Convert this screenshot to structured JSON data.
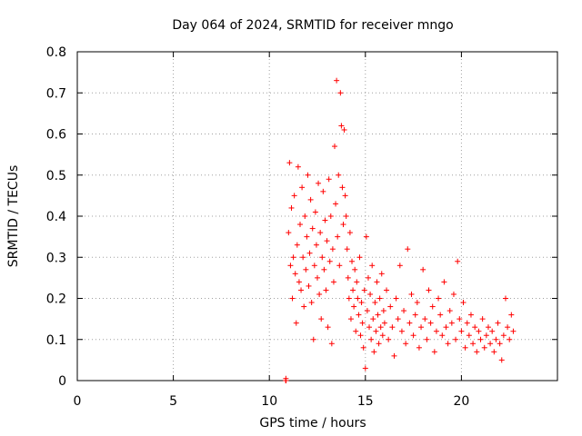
{
  "chart_data": {
    "type": "scatter",
    "title": "Day 064 of 2024, SRMTID for receiver mngo",
    "xlabel": "GPS time / hours",
    "ylabel": "SRMTID / TECUs",
    "xlim": [
      0,
      25
    ],
    "ylim": [
      0,
      0.8
    ],
    "xticks": [
      0,
      5,
      10,
      15,
      20
    ],
    "xtick_labels": [
      "0",
      "5",
      "10",
      "15",
      "20"
    ],
    "yticks": [
      0,
      0.1,
      0.2,
      0.3,
      0.4,
      0.5,
      0.6,
      0.7,
      0.8
    ],
    "ytick_labels": [
      "0",
      "0.1",
      "0.2",
      "0.3",
      "0.4",
      "0.5",
      "0.6",
      "0.7",
      "0.8"
    ],
    "grid": true,
    "marker": "+",
    "color": "#ff0000",
    "series": [
      {
        "name": "SRMTID",
        "points": [
          [
            10.85,
            0.0
          ],
          [
            10.86,
            0.005
          ],
          [
            10.87,
            0.0
          ],
          [
            11.0,
            0.36
          ],
          [
            11.05,
            0.53
          ],
          [
            11.1,
            0.28
          ],
          [
            11.15,
            0.42
          ],
          [
            11.2,
            0.2
          ],
          [
            11.25,
            0.3
          ],
          [
            11.3,
            0.45
          ],
          [
            11.35,
            0.26
          ],
          [
            11.4,
            0.14
          ],
          [
            11.45,
            0.33
          ],
          [
            11.5,
            0.52
          ],
          [
            11.55,
            0.24
          ],
          [
            11.6,
            0.38
          ],
          [
            11.65,
            0.22
          ],
          [
            11.7,
            0.47
          ],
          [
            11.75,
            0.3
          ],
          [
            11.8,
            0.18
          ],
          [
            11.85,
            0.4
          ],
          [
            11.9,
            0.27
          ],
          [
            11.95,
            0.35
          ],
          [
            12.0,
            0.5
          ],
          [
            12.05,
            0.23
          ],
          [
            12.1,
            0.31
          ],
          [
            12.15,
            0.44
          ],
          [
            12.2,
            0.19
          ],
          [
            12.25,
            0.37
          ],
          [
            12.3,
            0.1
          ],
          [
            12.35,
            0.28
          ],
          [
            12.4,
            0.41
          ],
          [
            12.45,
            0.33
          ],
          [
            12.5,
            0.25
          ],
          [
            12.55,
            0.48
          ],
          [
            12.6,
            0.21
          ],
          [
            12.65,
            0.36
          ],
          [
            12.7,
            0.15
          ],
          [
            12.75,
            0.3
          ],
          [
            12.8,
            0.46
          ],
          [
            12.85,
            0.27
          ],
          [
            12.9,
            0.39
          ],
          [
            12.95,
            0.22
          ],
          [
            13.0,
            0.34
          ],
          [
            13.05,
            0.13
          ],
          [
            13.1,
            0.49
          ],
          [
            13.15,
            0.29
          ],
          [
            13.2,
            0.4
          ],
          [
            13.25,
            0.09
          ],
          [
            13.3,
            0.32
          ],
          [
            13.35,
            0.24
          ],
          [
            13.4,
            0.57
          ],
          [
            13.45,
            0.43
          ],
          [
            13.5,
            0.73
          ],
          [
            13.55,
            0.35
          ],
          [
            13.6,
            0.5
          ],
          [
            13.65,
            0.28
          ],
          [
            13.7,
            0.7
          ],
          [
            13.75,
            0.62
          ],
          [
            13.8,
            0.47
          ],
          [
            13.85,
            0.38
          ],
          [
            13.9,
            0.61
          ],
          [
            13.95,
            0.45
          ],
          [
            14.0,
            0.4
          ],
          [
            14.05,
            0.32
          ],
          [
            14.1,
            0.25
          ],
          [
            14.15,
            0.2
          ],
          [
            14.2,
            0.36
          ],
          [
            14.25,
            0.15
          ],
          [
            14.3,
            0.29
          ],
          [
            14.35,
            0.22
          ],
          [
            14.4,
            0.18
          ],
          [
            14.45,
            0.27
          ],
          [
            14.5,
            0.12
          ],
          [
            14.55,
            0.24
          ],
          [
            14.6,
            0.2
          ],
          [
            14.65,
            0.16
          ],
          [
            14.7,
            0.3
          ],
          [
            14.75,
            0.11
          ],
          [
            14.8,
            0.19
          ],
          [
            14.85,
            0.14
          ],
          [
            14.9,
            0.08
          ],
          [
            14.95,
            0.22
          ],
          [
            15.0,
            0.03
          ],
          [
            15.05,
            0.35
          ],
          [
            15.1,
            0.17
          ],
          [
            15.15,
            0.25
          ],
          [
            15.2,
            0.13
          ],
          [
            15.25,
            0.21
          ],
          [
            15.3,
            0.1
          ],
          [
            15.35,
            0.28
          ],
          [
            15.4,
            0.15
          ],
          [
            15.45,
            0.07
          ],
          [
            15.5,
            0.19
          ],
          [
            15.55,
            0.12
          ],
          [
            15.6,
            0.24
          ],
          [
            15.65,
            0.16
          ],
          [
            15.7,
            0.09
          ],
          [
            15.75,
            0.2
          ],
          [
            15.8,
            0.13
          ],
          [
            15.85,
            0.26
          ],
          [
            15.9,
            0.11
          ],
          [
            15.95,
            0.17
          ],
          [
            16.0,
            0.14
          ],
          [
            16.1,
            0.22
          ],
          [
            16.2,
            0.1
          ],
          [
            16.3,
            0.18
          ],
          [
            16.4,
            0.13
          ],
          [
            16.5,
            0.06
          ],
          [
            16.6,
            0.2
          ],
          [
            16.7,
            0.15
          ],
          [
            16.8,
            0.28
          ],
          [
            16.9,
            0.12
          ],
          [
            17.0,
            0.17
          ],
          [
            17.1,
            0.09
          ],
          [
            17.2,
            0.32
          ],
          [
            17.3,
            0.14
          ],
          [
            17.4,
            0.21
          ],
          [
            17.5,
            0.11
          ],
          [
            17.6,
            0.16
          ],
          [
            17.7,
            0.19
          ],
          [
            17.8,
            0.08
          ],
          [
            17.9,
            0.13
          ],
          [
            18.0,
            0.27
          ],
          [
            18.1,
            0.15
          ],
          [
            18.2,
            0.1
          ],
          [
            18.3,
            0.22
          ],
          [
            18.4,
            0.14
          ],
          [
            18.5,
            0.18
          ],
          [
            18.6,
            0.07
          ],
          [
            18.7,
            0.12
          ],
          [
            18.8,
            0.2
          ],
          [
            18.9,
            0.16
          ],
          [
            19.0,
            0.11
          ],
          [
            19.1,
            0.24
          ],
          [
            19.2,
            0.13
          ],
          [
            19.3,
            0.09
          ],
          [
            19.4,
            0.17
          ],
          [
            19.5,
            0.14
          ],
          [
            19.6,
            0.21
          ],
          [
            19.7,
            0.1
          ],
          [
            19.8,
            0.29
          ],
          [
            19.9,
            0.15
          ],
          [
            20.0,
            0.12
          ],
          [
            20.1,
            0.19
          ],
          [
            20.2,
            0.08
          ],
          [
            20.3,
            0.14
          ],
          [
            20.4,
            0.11
          ],
          [
            20.5,
            0.16
          ],
          [
            20.6,
            0.09
          ],
          [
            20.7,
            0.13
          ],
          [
            20.8,
            0.07
          ],
          [
            20.9,
            0.12
          ],
          [
            21.0,
            0.1
          ],
          [
            21.1,
            0.15
          ],
          [
            21.2,
            0.08
          ],
          [
            21.3,
            0.11
          ],
          [
            21.4,
            0.13
          ],
          [
            21.5,
            0.09
          ],
          [
            21.6,
            0.12
          ],
          [
            21.7,
            0.07
          ],
          [
            21.8,
            0.1
          ],
          [
            21.9,
            0.14
          ],
          [
            22.0,
            0.09
          ],
          [
            22.1,
            0.05
          ],
          [
            22.2,
            0.11
          ],
          [
            22.3,
            0.2
          ],
          [
            22.4,
            0.13
          ],
          [
            22.5,
            0.1
          ],
          [
            22.6,
            0.16
          ],
          [
            22.7,
            0.12
          ]
        ]
      }
    ]
  }
}
